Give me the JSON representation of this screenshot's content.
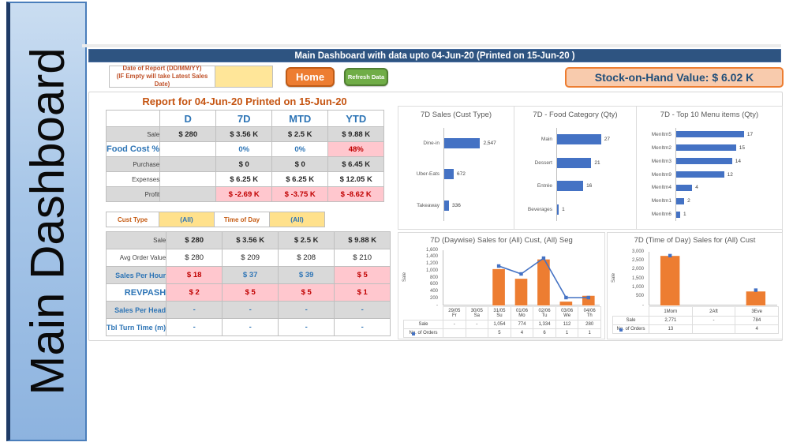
{
  "banner": {
    "label": "Main Dashboard"
  },
  "header": {
    "title": "Main Dashboard with data upto 04-Jun-20 (Printed on 15-Jun-20 )"
  },
  "controls": {
    "date_label_line1": "Date of Report (DD/MM/YY)",
    "date_label_line2": "(IF Empty will take Latest Sales Date)",
    "date_value": "",
    "home_label": "Home",
    "refresh_label": "Refresh Data",
    "stock_label": "Stock-on-Hand Value: $ 6.02 K"
  },
  "colors": {
    "accent_blue": "#4472C4",
    "accent_orange": "#ED7D31",
    "header_navy": "#2E5481",
    "value_blue": "#2E75B6",
    "bad_bg": "#FFC7CE",
    "bad_text": "#C00000",
    "filter_yellow": "#FFE18C",
    "input_yellow": "#FFE699",
    "stock_bg": "#F8CBAD",
    "row_gray": "#D9D9D9"
  },
  "report": {
    "title": "Report for 04-Jun-20 Printed on 15-Jun-20",
    "table1": {
      "columns": [
        "",
        "D",
        "7D",
        "MTD",
        "YTD"
      ],
      "rows": [
        {
          "label": "Sale",
          "lc": "",
          "bg": "gray",
          "cells": [
            {
              "t": "$ 280",
              "c": "strong"
            },
            {
              "t": "$ 3.56 K",
              "c": "strong"
            },
            {
              "t": "$ 2.5 K",
              "c": "strong"
            },
            {
              "t": "$ 9.88 K",
              "c": "strong"
            }
          ]
        },
        {
          "label": "Food Cost %",
          "lc": "blue lg",
          "bg": "white",
          "cells": [
            {
              "t": "",
              "c": ""
            },
            {
              "t": "0%",
              "c": "blue"
            },
            {
              "t": "0%",
              "c": "blue"
            },
            {
              "t": "48%",
              "c": "bad"
            }
          ]
        },
        {
          "label": "Purchase",
          "lc": "",
          "bg": "gray",
          "cells": [
            {
              "t": "",
              "c": ""
            },
            {
              "t": "$ 0",
              "c": ""
            },
            {
              "t": "$ 0",
              "c": ""
            },
            {
              "t": "$ 6.45 K",
              "c": ""
            }
          ]
        },
        {
          "label": "Expenses",
          "lc": "",
          "bg": "white",
          "cells": [
            {
              "t": "",
              "c": ""
            },
            {
              "t": "$ 6.25 K",
              "c": ""
            },
            {
              "t": "$ 6.25 K",
              "c": ""
            },
            {
              "t": "$ 12.05 K",
              "c": ""
            }
          ]
        },
        {
          "label": "Profit",
          "lc": "",
          "bg": "gray",
          "cells": [
            {
              "t": "",
              "c": ""
            },
            {
              "t": "$ -2.69 K",
              "c": "bad"
            },
            {
              "t": "$ -3.75 K",
              "c": "bad"
            },
            {
              "t": "$ -8.62 K",
              "c": "bad"
            }
          ]
        }
      ]
    },
    "filters": [
      {
        "label": "Cust Type",
        "value": "(All)"
      },
      {
        "label": "Time of Day",
        "value": "(All)"
      }
    ],
    "table2": {
      "rows": [
        {
          "label": "Sale",
          "lc": "",
          "bg": "gray",
          "cells": [
            {
              "t": "$ 280",
              "c": "strong"
            },
            {
              "t": "$ 3.56 K",
              "c": "strong"
            },
            {
              "t": "$ 2.5 K",
              "c": "strong"
            },
            {
              "t": "$ 9.88 K",
              "c": "strong"
            }
          ]
        },
        {
          "label": "Avg Order Value",
          "lc": "",
          "bg": "white",
          "cells": [
            {
              "t": "$ 280",
              "c": "reg"
            },
            {
              "t": "$ 209",
              "c": "reg"
            },
            {
              "t": "$ 208",
              "c": "reg"
            },
            {
              "t": "$ 210",
              "c": "reg"
            }
          ]
        },
        {
          "label": "Sales Per Hour",
          "lc": "blue md",
          "bg": "gray",
          "cells": [
            {
              "t": "$ 18",
              "c": "bad"
            },
            {
              "t": "$ 37",
              "c": "blue"
            },
            {
              "t": "$ 39",
              "c": "blue"
            },
            {
              "t": "$ 5",
              "c": "bad"
            }
          ]
        },
        {
          "label": "REVPASH",
          "lc": "blue lg",
          "bg": "white",
          "cells": [
            {
              "t": "$ 2",
              "c": "bad"
            },
            {
              "t": "$ 5",
              "c": "bad"
            },
            {
              "t": "$ 5",
              "c": "bad"
            },
            {
              "t": "$ 1",
              "c": "bad"
            }
          ]
        },
        {
          "label": "Sales Per Head",
          "lc": "blue md",
          "bg": "gray",
          "cells": [
            {
              "t": "-",
              "c": "dash"
            },
            {
              "t": "-",
              "c": "dash"
            },
            {
              "t": "-",
              "c": "dash"
            },
            {
              "t": "-",
              "c": "dash"
            }
          ]
        },
        {
          "label": "Tbl Turn Time (m)",
          "lc": "blue md",
          "bg": "white",
          "cells": [
            {
              "t": "-",
              "c": "dash"
            },
            {
              "t": "-",
              "c": "dash"
            },
            {
              "t": "-",
              "c": "dash"
            },
            {
              "t": "-",
              "c": "dash"
            }
          ]
        }
      ]
    }
  },
  "chart_data": [
    {
      "type": "bar",
      "orientation": "horizontal",
      "title": "7D Sales (Cust Type)",
      "categories": [
        "Dine-in",
        "Uber-Eats",
        "Takeaway"
      ],
      "values": [
        2547,
        672,
        336
      ],
      "labels": [
        "2,547",
        "672",
        "336"
      ],
      "xlim": [
        0,
        2800
      ]
    },
    {
      "type": "bar",
      "orientation": "horizontal",
      "title": "7D - Food Category (Qty)",
      "categories": [
        "Main",
        "Dessert",
        "Entrée",
        "Beverages"
      ],
      "values": [
        27,
        21,
        16,
        1
      ],
      "labels": [
        "27",
        "21",
        "16",
        "1"
      ],
      "xlim": [
        0,
        30
      ]
    },
    {
      "type": "bar",
      "orientation": "horizontal",
      "title": "7D - Top 10 Menu items (Qty)",
      "categories": [
        "MenItm5",
        "MenItm2",
        "MenItm3",
        "MenItm9",
        "MenItm4",
        "MenItm1",
        "MenItm6"
      ],
      "values": [
        17,
        15,
        14,
        12,
        4,
        2,
        1
      ],
      "labels": [
        "17",
        "15",
        "14",
        "12",
        "4",
        "2",
        "1"
      ],
      "xlim": [
        0,
        19
      ]
    },
    {
      "type": "combo",
      "title": "7D (Daywise) Sales for (All) Cust, (All) Seg",
      "ylabel": "Sale",
      "yticks": [
        "1,600",
        "1,400",
        "1,200",
        "1,000",
        "800",
        "600",
        "400",
        "200",
        "-"
      ],
      "ylim": [
        0,
        1600
      ],
      "categories": [
        "29/05|Fr",
        "30/05|Sa",
        "31/05|Su",
        "01/06|Mo",
        "02/06|Tu",
        "03/06|We",
        "04/06|Th"
      ],
      "series": [
        {
          "name": "Sale",
          "type": "bar",
          "color": "#ED7D31",
          "values": [
            null,
            null,
            1054,
            774,
            1334,
            112,
            280
          ],
          "labels": [
            "-",
            "-",
            "1,054",
            "774",
            "1,334",
            "112",
            "280"
          ]
        },
        {
          "name": "No. of Orders",
          "type": "line",
          "color": "#4472C4",
          "values": [
            null,
            null,
            5,
            4,
            6,
            1,
            1
          ],
          "labels": [
            "",
            "",
            "5",
            "4",
            "6",
            "1",
            "1"
          ],
          "secondary_ylim": [
            0,
            7
          ]
        }
      ]
    },
    {
      "type": "combo",
      "title": "7D (Time of Day) Sales for (All) Cust",
      "ylabel": "Sale",
      "yticks": [
        "3,000",
        "2,500",
        "2,000",
        "1,500",
        "1,000",
        "500",
        "-"
      ],
      "ylim": [
        0,
        3000
      ],
      "categories": [
        "1Morn",
        "2Aft",
        "3Eve"
      ],
      "series": [
        {
          "name": "Sale",
          "type": "bar",
          "color": "#ED7D31",
          "values": [
            2771,
            null,
            784
          ],
          "labels": [
            "2,771",
            "-",
            "784"
          ]
        },
        {
          "name": "No. of Orders",
          "type": "line",
          "color": "#4472C4",
          "values": [
            13,
            null,
            4
          ],
          "labels": [
            "13",
            "",
            "4"
          ],
          "secondary_ylim": [
            0,
            14
          ]
        }
      ]
    }
  ]
}
